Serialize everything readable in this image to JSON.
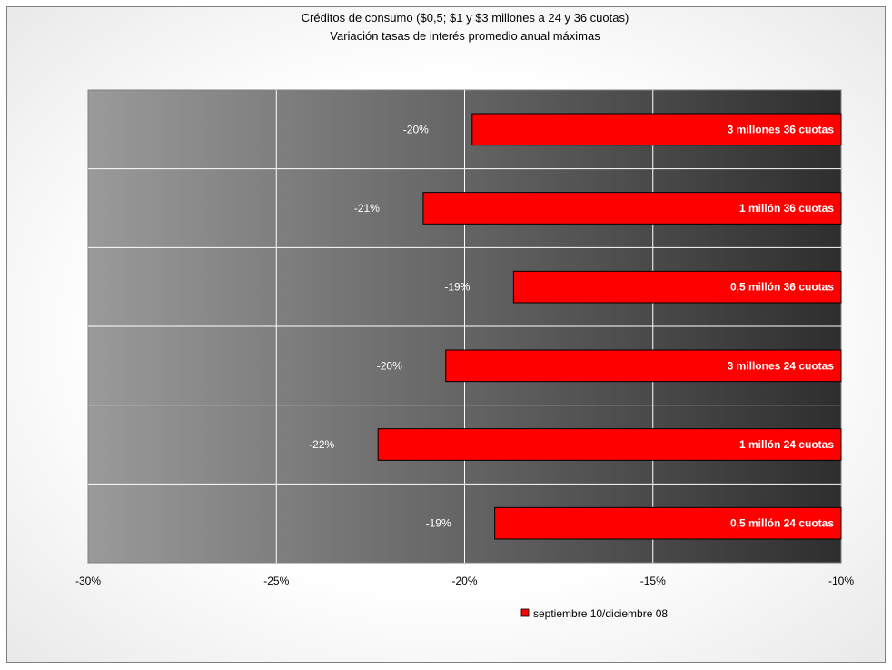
{
  "chart_data": {
    "type": "bar",
    "orientation": "horizontal",
    "title": "Créditos de consumo ($0,5; $1 y $3 millones a 24 y 36 cuotas)",
    "subtitle": "Variación tasas de interés promedio anual máximas",
    "categories": [
      "3 millones 36 cuotas",
      "1 millón 36 cuotas",
      "0,5 millón 36 cuotas",
      "3 millones 24 cuotas",
      "1 millón 24 cuotas",
      "0,5 millón 24 cuotas"
    ],
    "series": [
      {
        "name": "septiembre 10/diciembre 08",
        "values": [
          -19.8,
          -21.1,
          -18.7,
          -20.5,
          -22.3,
          -19.2
        ],
        "data_labels": [
          "-20%",
          "-21%",
          "-19%",
          "-20%",
          "-22%",
          "-19%"
        ]
      }
    ],
    "xlim": [
      -30,
      -10
    ],
    "x_ticks": [
      -30,
      -25,
      -20,
      -15,
      -10
    ],
    "x_tick_labels": [
      "-30%",
      "-25%",
      "-20%",
      "-15%",
      "-10%"
    ],
    "grid": true,
    "legend_position": "bottom",
    "colors": {
      "bar": "#ff0000",
      "bar_border": "#000000",
      "plot_bg_light": "#9a9a9a",
      "plot_bg_dark": "#2e2e2e",
      "gridline": "#ffffff"
    }
  }
}
